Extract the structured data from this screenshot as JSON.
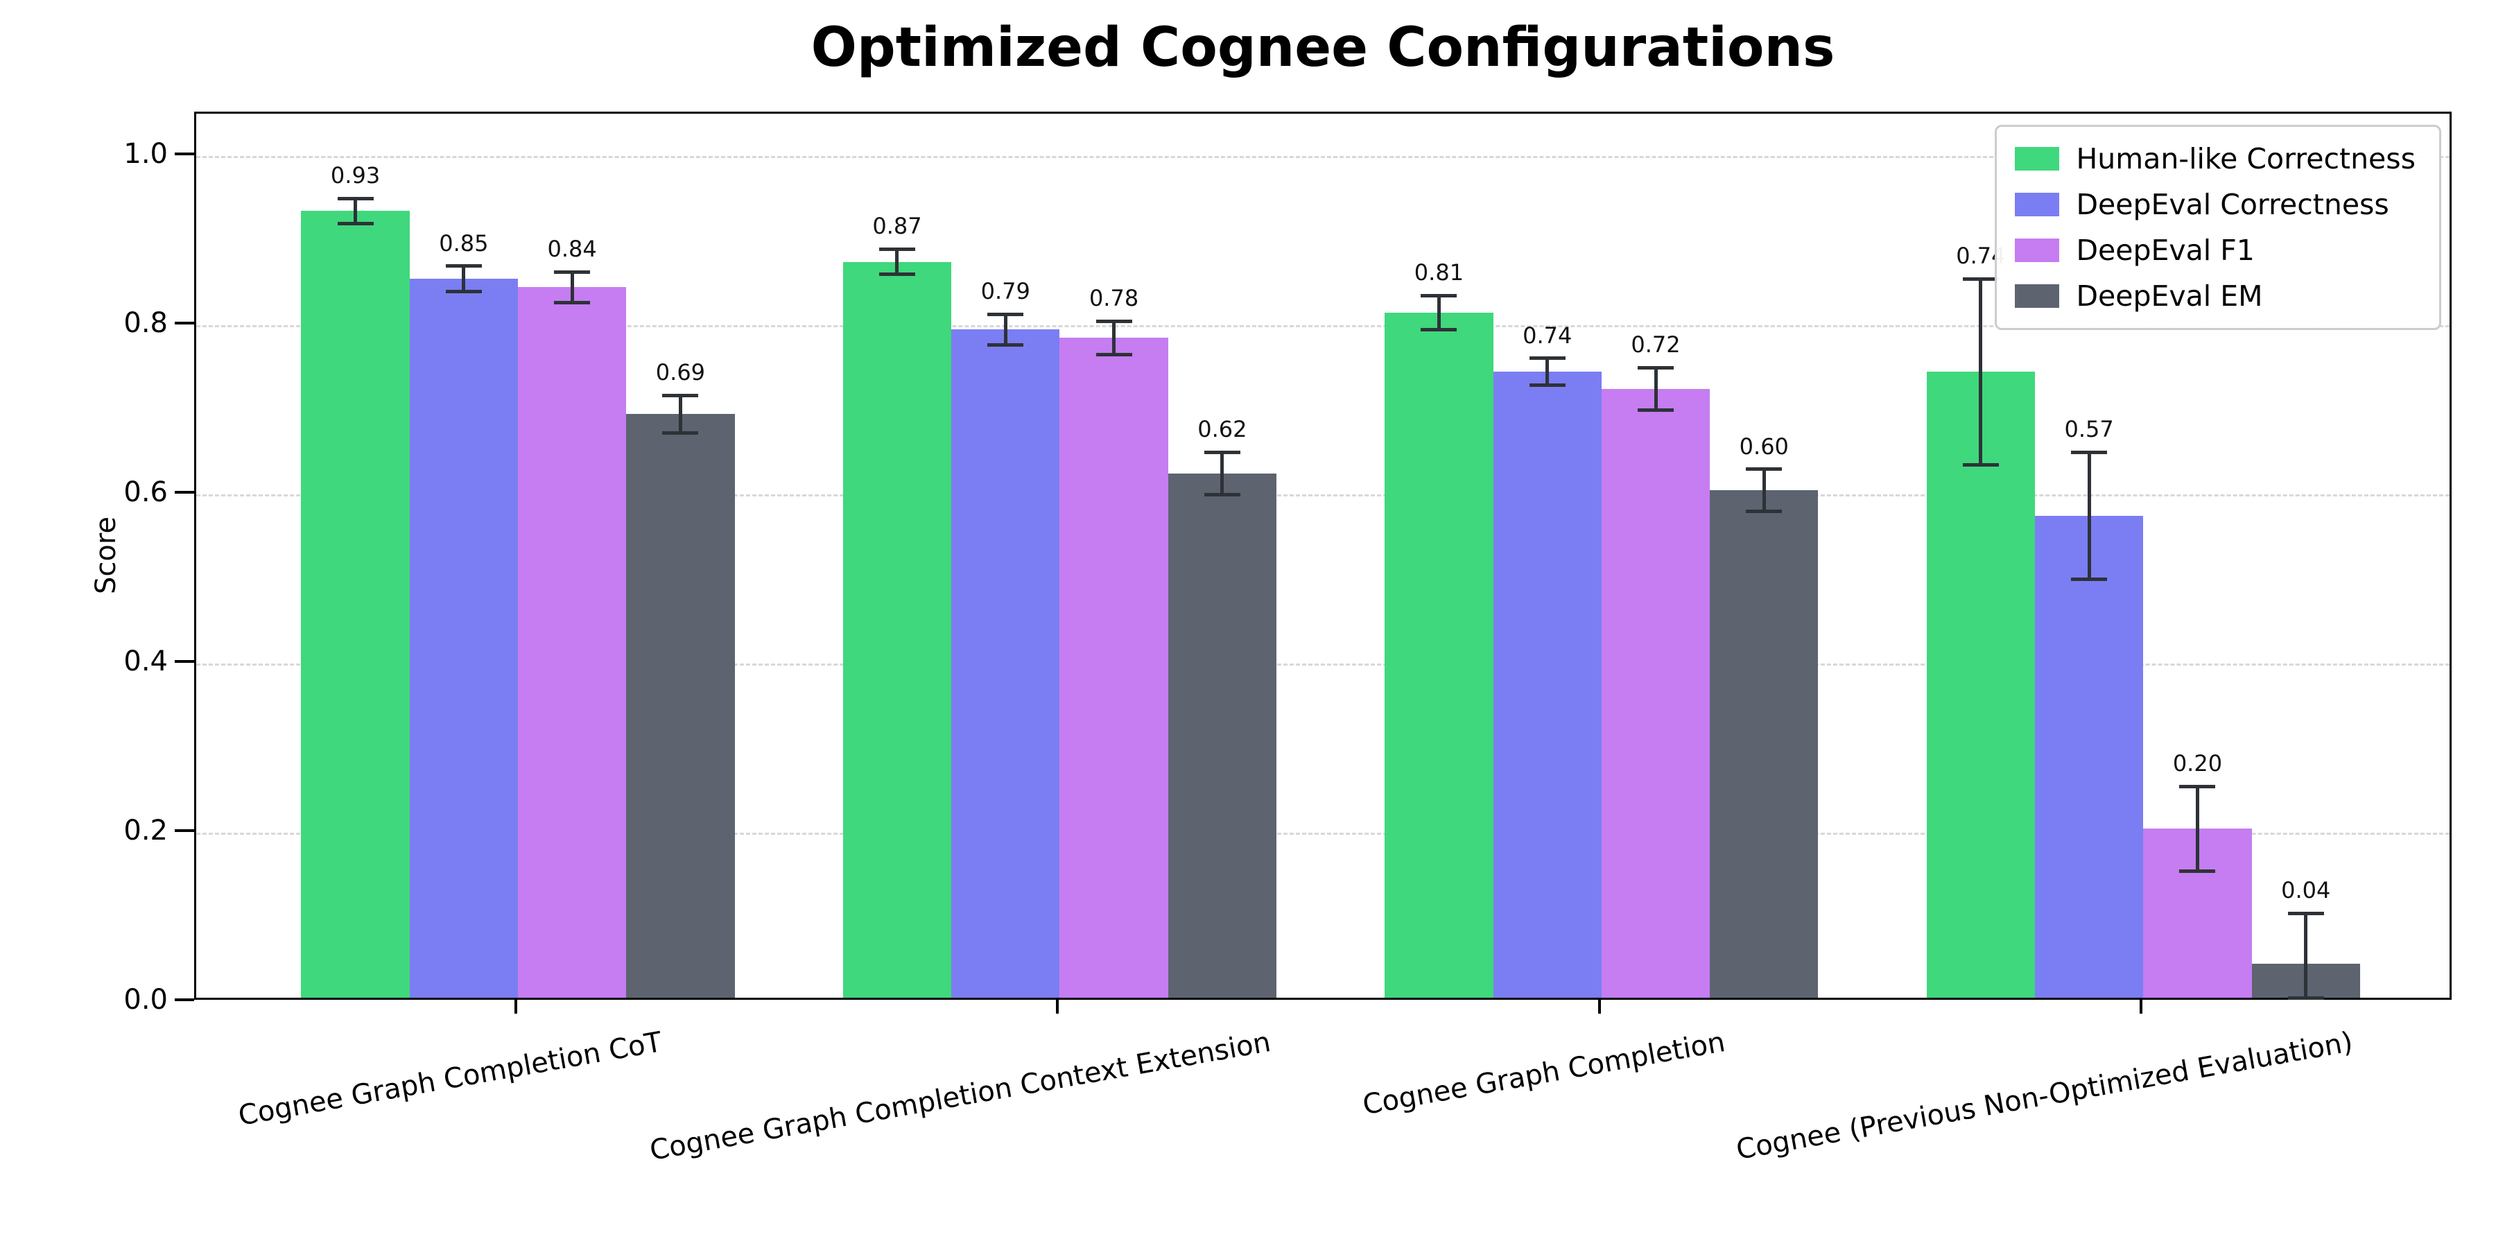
{
  "chart_data": {
    "type": "bar",
    "title": "Optimized Cognee Configurations",
    "xlabel": "",
    "ylabel": "Score",
    "ylim": [
      0,
      1.05
    ],
    "yticks": [
      0.0,
      0.2,
      0.4,
      0.6,
      0.8,
      1.0
    ],
    "grid": "horizontal-dashed",
    "legend_position": "upper-right",
    "categories": [
      "Cognee Graph Completion CoT",
      "Cognee Graph Completion Context Extension",
      "Cognee Graph Completion",
      "Cognee (Previous Non-Optimized Evaluation)"
    ],
    "series": [
      {
        "name": "Human-like Correctness",
        "color": "#3fd87c",
        "values": [
          0.93,
          0.87,
          0.81,
          0.74
        ],
        "errors": [
          0.015,
          0.015,
          0.02,
          0.11
        ]
      },
      {
        "name": "DeepEval Correctness",
        "color": "#7b7ef2",
        "values": [
          0.85,
          0.79,
          0.74,
          0.57
        ],
        "errors": [
          0.015,
          0.018,
          0.016,
          0.075
        ]
      },
      {
        "name": "DeepEval F1",
        "color": "#c57df1",
        "values": [
          0.84,
          0.78,
          0.72,
          0.2
        ],
        "errors": [
          0.018,
          0.02,
          0.025,
          0.05
        ]
      },
      {
        "name": "DeepEval EM",
        "color": "#5d6470",
        "values": [
          0.69,
          0.62,
          0.6,
          0.04
        ],
        "errors": [
          0.022,
          0.025,
          0.025,
          0.06
        ]
      }
    ],
    "error_bar_color": "#2e3237",
    "grid_color": "#d8d8d8"
  }
}
